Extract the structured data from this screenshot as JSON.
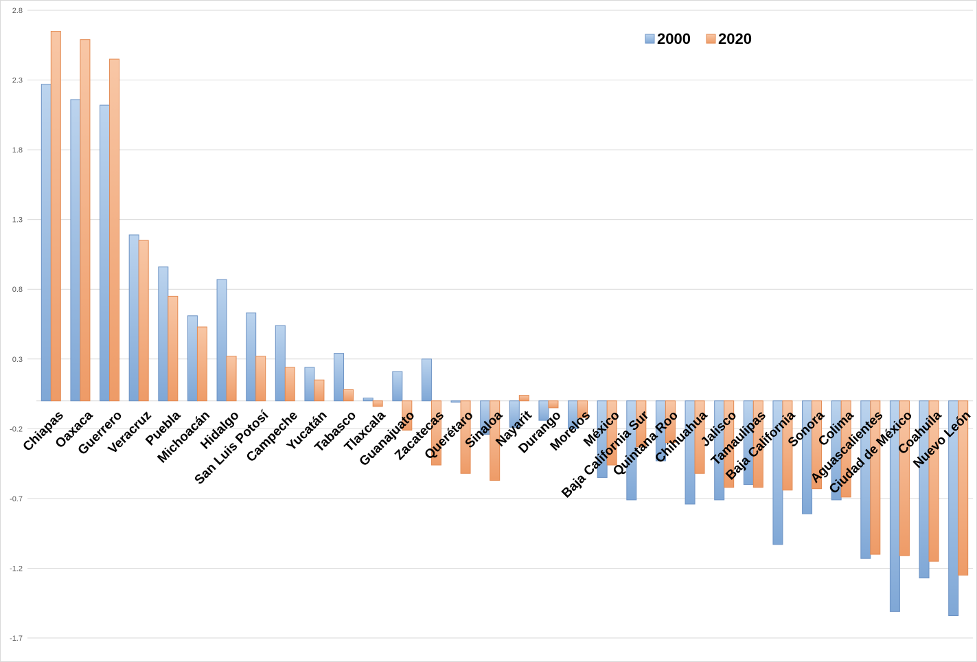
{
  "chart_data": {
    "type": "bar",
    "title": "",
    "xlabel": "",
    "ylabel": "",
    "ylim": [
      -1.7,
      2.8
    ],
    "yticks": [
      "2.8",
      "2.3",
      "1.8",
      "1.3",
      "0.8",
      "0.3",
      "-0.2",
      "-0.7",
      "-1.2",
      "-1.7"
    ],
    "grid": true,
    "legend_position": "top-right",
    "colors": {
      "2000": "#9dc3e6",
      "2020": "#f4b183"
    },
    "categories": [
      "Chiapas",
      "Oaxaca",
      "Guerrero",
      "Veracruz",
      "Puebla",
      "Michoacán",
      "Hidalgo",
      "San Luis Potosí",
      "Campeche",
      "Yucatán",
      "Tabasco",
      "Tlaxcala",
      "Guanajuato",
      "Zacatecas",
      "Querétaro",
      "Sinaloa",
      "Nayarit",
      "Durango",
      "Morelos",
      "México",
      "Baja California Sur",
      "Quintana Roo",
      "Chihuahua",
      "Jalisco",
      "Tamaulipas",
      "Baja California",
      "Sonora",
      "Colima",
      "Aguascalientes",
      "Ciudad de México",
      "Coahuila",
      "Nuevo León"
    ],
    "series": [
      {
        "name": "2000",
        "values": [
          2.27,
          2.16,
          2.12,
          1.19,
          0.96,
          0.61,
          0.87,
          0.63,
          0.54,
          0.24,
          0.34,
          0.02,
          0.21,
          0.3,
          -0.01,
          -0.24,
          -0.19,
          -0.14,
          -0.2,
          -0.55,
          -0.71,
          -0.43,
          -0.74,
          -0.71,
          -0.6,
          -1.03,
          -0.81,
          -0.71,
          -1.13,
          -1.51,
          -1.27,
          -1.54
        ]
      },
      {
        "name": "2020",
        "values": [
          2.65,
          2.59,
          2.45,
          1.15,
          0.75,
          0.53,
          0.32,
          0.32,
          0.24,
          0.15,
          0.08,
          -0.04,
          -0.21,
          -0.46,
          -0.52,
          -0.57,
          0.04,
          -0.05,
          -0.12,
          -0.46,
          -0.33,
          -0.3,
          -0.52,
          -0.62,
          -0.62,
          -0.64,
          -0.63,
          -0.69,
          -1.1,
          -1.11,
          -1.15,
          -1.25
        ]
      }
    ]
  }
}
